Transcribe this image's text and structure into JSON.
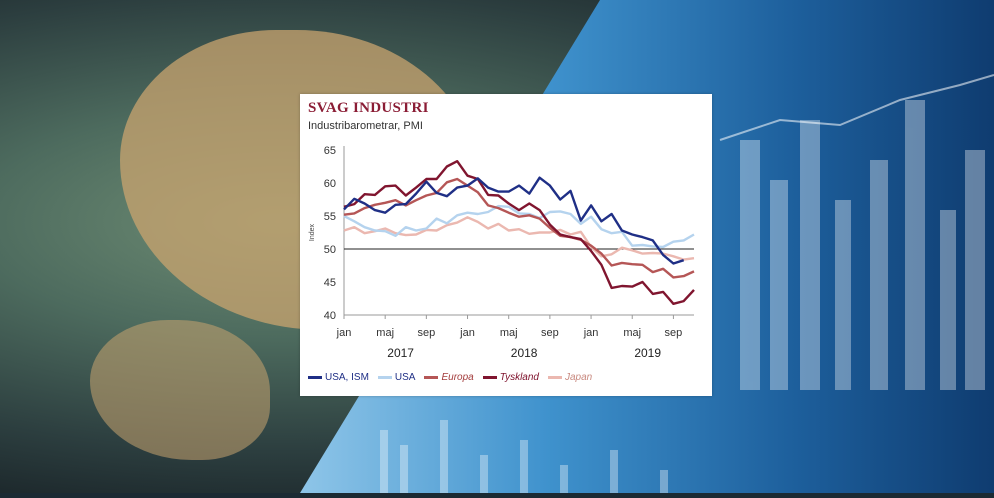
{
  "chart_data": {
    "type": "line",
    "title": "SVAG INDUSTRI",
    "subtitle": "Industribarometrar, PMI",
    "ylabel": "Index",
    "ylim": [
      40,
      65
    ],
    "yticks": [
      40,
      45,
      50,
      55,
      60,
      65
    ],
    "reference_line": 50,
    "x_month_labels": [
      "jan",
      "maj",
      "sep",
      "jan",
      "maj",
      "sep",
      "jan",
      "maj",
      "sep"
    ],
    "x_year_labels": [
      "2017",
      "2018",
      "2019"
    ],
    "x": [
      "2017-01",
      "2017-02",
      "2017-03",
      "2017-04",
      "2017-05",
      "2017-06",
      "2017-07",
      "2017-08",
      "2017-09",
      "2017-10",
      "2017-11",
      "2017-12",
      "2018-01",
      "2018-02",
      "2018-03",
      "2018-04",
      "2018-05",
      "2018-06",
      "2018-07",
      "2018-08",
      "2018-09",
      "2018-10",
      "2018-11",
      "2018-12",
      "2019-01",
      "2019-02",
      "2019-03",
      "2019-04",
      "2019-05",
      "2019-06",
      "2019-07",
      "2019-08",
      "2019-09",
      "2019-10",
      "2019-11"
    ],
    "series": [
      {
        "name": "USA, ISM",
        "color": "#1f2f86",
        "values": [
          56.0,
          57.6,
          56.9,
          55.9,
          55.5,
          56.7,
          56.8,
          58.4,
          60.2,
          58.5,
          58.0,
          59.3,
          59.6,
          60.7,
          59.3,
          58.7,
          58.7,
          59.6,
          58.4,
          60.8,
          59.6,
          57.5,
          58.8,
          54.3,
          56.6,
          54.2,
          55.3,
          52.8,
          52.2,
          51.8,
          51.3,
          49.1,
          47.8,
          48.3,
          null
        ]
      },
      {
        "name": "USA",
        "color": "#b5d3ee",
        "values": [
          55.0,
          54.2,
          53.3,
          52.8,
          52.7,
          52.0,
          53.3,
          52.8,
          53.1,
          54.6,
          53.9,
          55.1,
          55.5,
          55.3,
          55.6,
          56.5,
          56.4,
          55.4,
          55.3,
          54.7,
          55.6,
          55.7,
          55.3,
          53.8,
          54.9,
          53.0,
          52.4,
          52.6,
          50.5,
          50.6,
          50.4,
          50.3,
          51.1,
          51.3,
          52.2
        ]
      },
      {
        "name": "Europa",
        "color": "#b55656",
        "values": [
          55.2,
          55.4,
          56.2,
          56.7,
          57.0,
          57.4,
          56.6,
          57.4,
          58.1,
          58.5,
          60.1,
          60.6,
          59.6,
          58.6,
          56.6,
          56.2,
          55.5,
          54.9,
          55.1,
          54.6,
          53.2,
          52.0,
          51.8,
          51.4,
          50.5,
          49.3,
          47.5,
          47.9,
          47.7,
          47.6,
          46.5,
          47.0,
          45.7,
          45.9,
          46.6
        ]
      },
      {
        "name": "Tyskland",
        "color": "#80152f",
        "values": [
          56.4,
          56.8,
          58.3,
          58.2,
          59.5,
          59.6,
          58.1,
          59.3,
          60.6,
          60.6,
          62.5,
          63.3,
          61.1,
          60.6,
          58.2,
          58.1,
          56.9,
          55.9,
          56.9,
          55.9,
          53.7,
          52.2,
          51.8,
          51.5,
          49.7,
          47.6,
          44.1,
          44.4,
          44.3,
          45.0,
          43.2,
          43.5,
          41.7,
          42.1,
          43.8
        ]
      },
      {
        "name": "Japan",
        "color": "#ebb8b0",
        "values": [
          52.8,
          53.3,
          52.4,
          52.7,
          53.1,
          52.4,
          52.1,
          52.2,
          52.9,
          52.8,
          53.6,
          54.0,
          54.8,
          54.1,
          53.1,
          53.8,
          52.8,
          53.0,
          52.3,
          52.5,
          52.5,
          52.9,
          52.2,
          52.6,
          50.3,
          48.9,
          49.2,
          50.2,
          49.8,
          49.3,
          49.4,
          49.3,
          48.9,
          48.4,
          48.6
        ]
      }
    ],
    "legend_position": "bottom",
    "grid": false
  }
}
